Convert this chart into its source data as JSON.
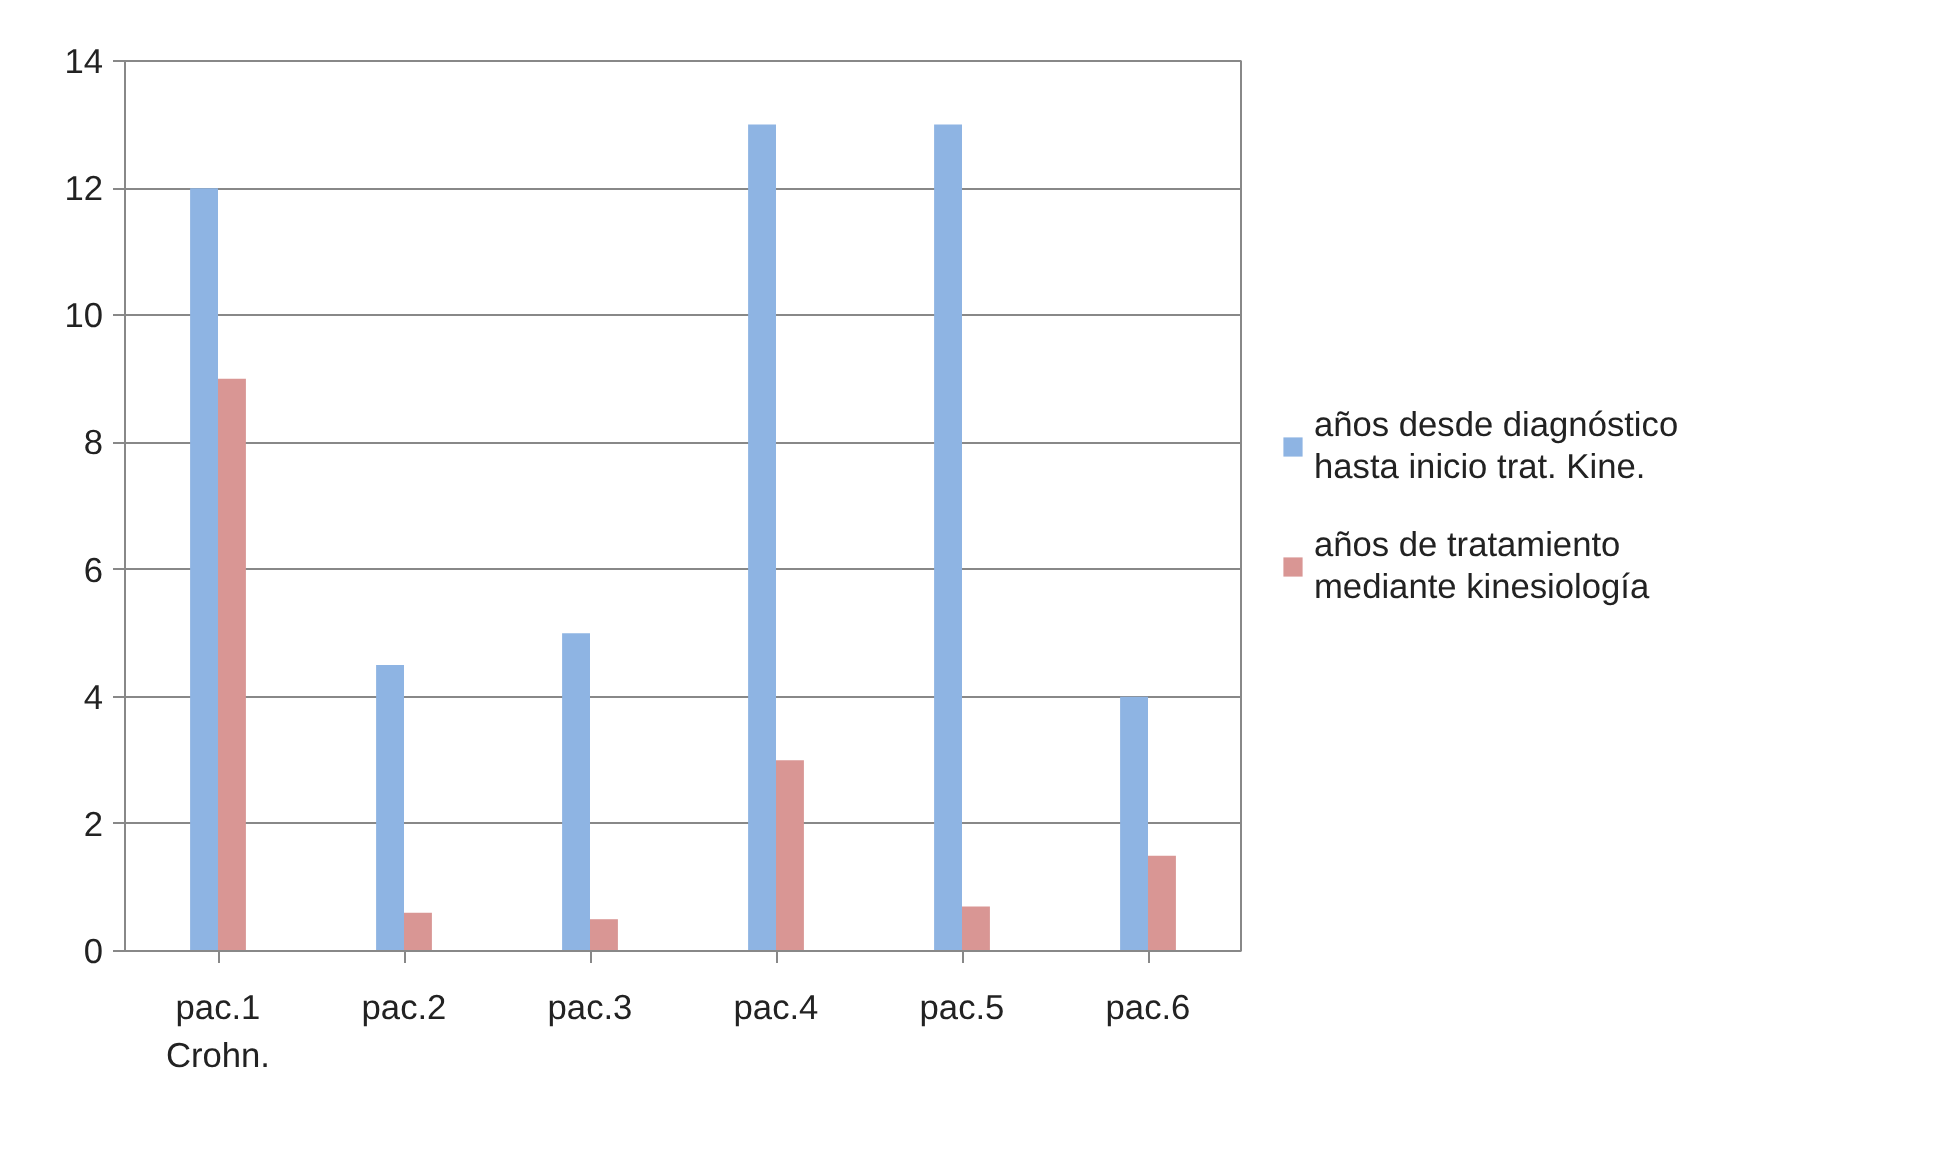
{
  "chart_data": {
    "type": "bar",
    "categories": [
      "pac.1\nCrohn.",
      "pac.2",
      "pac.3",
      "pac.4",
      "pac.5",
      "pac.6"
    ],
    "series": [
      {
        "name": "años desde diagnóstico\nhasta inicio trat. Kine.",
        "color": "#8eb4e3",
        "values": [
          12,
          4.5,
          5,
          13,
          13,
          4
        ]
      },
      {
        "name": "años de tratamiento\nmediante kinesiología",
        "color": "#d99694",
        "values": [
          9,
          0.6,
          0.5,
          3,
          0.7,
          1.5
        ]
      }
    ],
    "ylim": [
      0,
      14
    ],
    "yticks": [
      0,
      2,
      4,
      6,
      8,
      10,
      12,
      14
    ],
    "grid": "y",
    "legend": "right"
  }
}
